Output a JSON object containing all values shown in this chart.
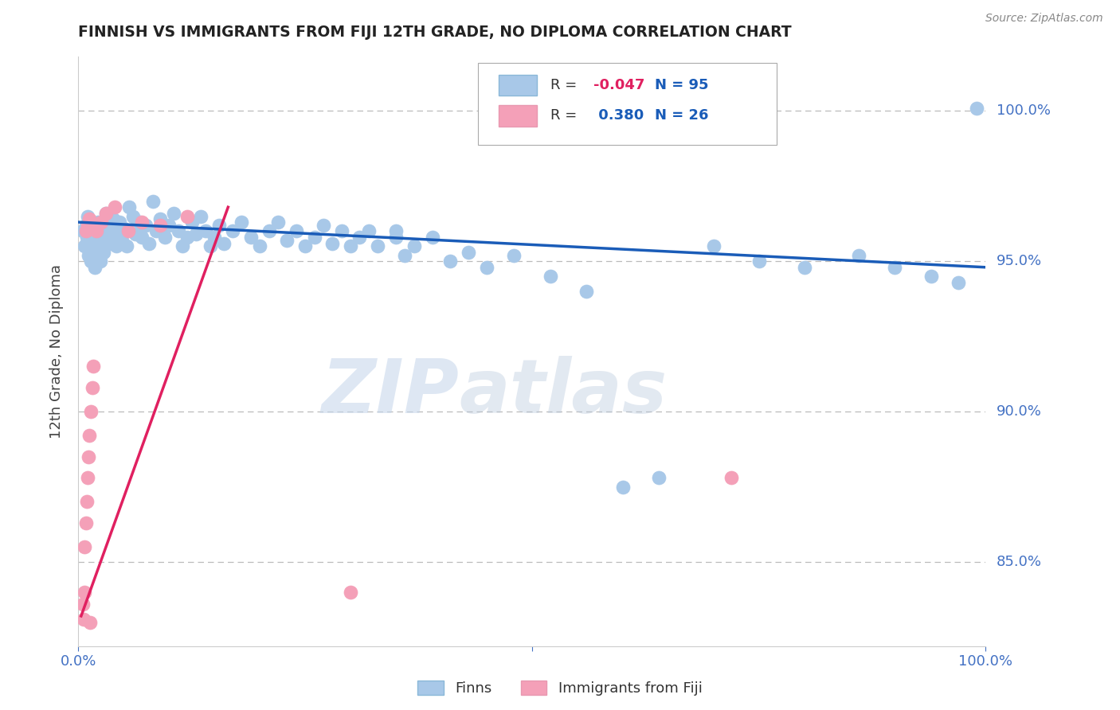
{
  "title": "FINNISH VS IMMIGRANTS FROM FIJI 12TH GRADE, NO DIPLOMA CORRELATION CHART",
  "source": "Source: ZipAtlas.com",
  "ylabel": "12th Grade, No Diploma",
  "finn_R": -0.047,
  "finn_N": 95,
  "fiji_R": 0.38,
  "fiji_N": 26,
  "finn_color": "#a8c8e8",
  "fiji_color": "#f4a0b8",
  "finn_line_color": "#1a5cb8",
  "fiji_line_color": "#e02060",
  "legend_finn_label": "Finns",
  "legend_fiji_label": "Immigrants from Fiji",
  "watermark_zip": "ZIP",
  "watermark_atlas": "atlas",
  "background_color": "#ffffff",
  "ytick_values": [
    0.85,
    0.9,
    0.95,
    1.0
  ],
  "ytick_labels": [
    "85.0%",
    "90.0%",
    "95.0%",
    "100.0%"
  ],
  "xlim": [
    0.0,
    1.0
  ],
  "ylim": [
    0.822,
    1.018
  ],
  "finn_x": [
    0.005,
    0.007,
    0.008,
    0.009,
    0.01,
    0.011,
    0.012,
    0.013,
    0.014,
    0.015,
    0.016,
    0.017,
    0.018,
    0.019,
    0.02,
    0.021,
    0.022,
    0.023,
    0.024,
    0.025,
    0.027,
    0.028,
    0.03,
    0.032,
    0.034,
    0.036,
    0.038,
    0.04,
    0.042,
    0.045,
    0.048,
    0.05,
    0.053,
    0.056,
    0.06,
    0.063,
    0.067,
    0.07,
    0.074,
    0.078,
    0.082,
    0.086,
    0.09,
    0.095,
    0.1,
    0.105,
    0.11,
    0.115,
    0.12,
    0.125,
    0.13,
    0.135,
    0.14,
    0.145,
    0.15,
    0.155,
    0.16,
    0.17,
    0.18,
    0.19,
    0.2,
    0.21,
    0.22,
    0.23,
    0.24,
    0.25,
    0.26,
    0.27,
    0.28,
    0.29,
    0.3,
    0.31,
    0.32,
    0.33,
    0.35,
    0.36,
    0.37,
    0.39,
    0.41,
    0.43,
    0.45,
    0.48,
    0.35,
    0.52,
    0.56,
    0.6,
    0.64,
    0.7,
    0.75,
    0.8,
    0.86,
    0.9,
    0.94,
    0.97,
    0.99
  ],
  "finn_y": [
    0.96,
    0.955,
    0.962,
    0.958,
    0.965,
    0.952,
    0.957,
    0.963,
    0.95,
    0.958,
    0.954,
    0.961,
    0.948,
    0.956,
    0.952,
    0.959,
    0.963,
    0.955,
    0.95,
    0.957,
    0.96,
    0.953,
    0.966,
    0.958,
    0.962,
    0.956,
    0.964,
    0.959,
    0.955,
    0.963,
    0.957,
    0.961,
    0.955,
    0.968,
    0.965,
    0.959,
    0.963,
    0.958,
    0.962,
    0.956,
    0.97,
    0.96,
    0.964,
    0.958,
    0.962,
    0.966,
    0.96,
    0.955,
    0.958,
    0.963,
    0.959,
    0.965,
    0.96,
    0.955,
    0.958,
    0.962,
    0.956,
    0.96,
    0.963,
    0.958,
    0.955,
    0.96,
    0.963,
    0.957,
    0.96,
    0.955,
    0.958,
    0.962,
    0.956,
    0.96,
    0.955,
    0.958,
    0.96,
    0.955,
    0.958,
    0.952,
    0.955,
    0.958,
    0.95,
    0.953,
    0.948,
    0.952,
    0.96,
    0.945,
    0.94,
    0.875,
    0.878,
    0.955,
    0.95,
    0.948,
    0.952,
    0.948,
    0.945,
    0.943,
    1.001
  ],
  "fiji_x": [
    0.005,
    0.006,
    0.007,
    0.007,
    0.008,
    0.008,
    0.009,
    0.01,
    0.01,
    0.011,
    0.012,
    0.012,
    0.013,
    0.014,
    0.015,
    0.016,
    0.02,
    0.025,
    0.03,
    0.04,
    0.055,
    0.07,
    0.09,
    0.12,
    0.3,
    0.72
  ],
  "fiji_y": [
    0.836,
    0.831,
    0.84,
    0.855,
    0.863,
    0.96,
    0.87,
    0.878,
    0.962,
    0.885,
    0.892,
    0.964,
    0.83,
    0.9,
    0.908,
    0.915,
    0.96,
    0.963,
    0.966,
    0.968,
    0.96,
    0.963,
    0.962,
    0.965,
    0.84,
    0.878
  ],
  "finn_line_x0": 0.0,
  "finn_line_x1": 1.0,
  "finn_line_y0": 0.963,
  "finn_line_y1": 0.948,
  "fiji_line_x0": 0.003,
  "fiji_line_x1": 0.165,
  "fiji_line_y0": 0.832,
  "fiji_line_y1": 0.968
}
